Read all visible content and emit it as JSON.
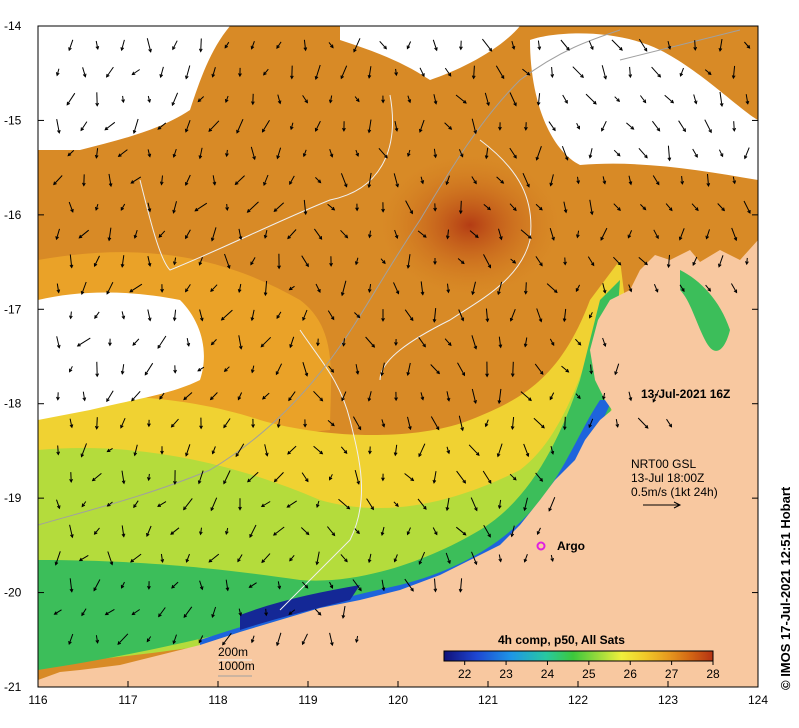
{
  "map": {
    "x_ticks": [
      "116",
      "117",
      "118",
      "119",
      "120",
      "121",
      "122",
      "123",
      "124"
    ],
    "y_ticks": [
      "-14",
      "-15",
      "-16",
      "-17",
      "-18",
      "-19",
      "-20",
      "-21"
    ],
    "x_range": [
      116,
      124
    ],
    "y_range": [
      -21,
      -14
    ]
  },
  "annotations": {
    "date": "13-Jul-2021 16Z",
    "current_line1": "NRT00 GSL",
    "current_line2": "13-Jul 18:00Z",
    "current_line3": "0.5m/s (1kt 24h)",
    "argo_label": "Argo",
    "contour_200": "200m",
    "contour_1000": "1000m",
    "credit": "© IMOS 17-Jul-2021 12:51 Hobart"
  },
  "colorbar": {
    "title": "4h comp, p50, All Sats",
    "tick_labels": [
      "22",
      "23",
      "24",
      "25",
      "26",
      "27",
      "28"
    ],
    "range": [
      21.5,
      28
    ],
    "colors": [
      "#101078",
      "#1e46d2",
      "#1e96e6",
      "#28c8a0",
      "#3cc83c",
      "#a0dc3c",
      "#f0f03c",
      "#f0c828",
      "#e6961e",
      "#d26414",
      "#b43214"
    ]
  },
  "colors": {
    "land": "#f8c8a0",
    "ocean_warm": "#d2781e",
    "cloud": "#ffffff"
  }
}
